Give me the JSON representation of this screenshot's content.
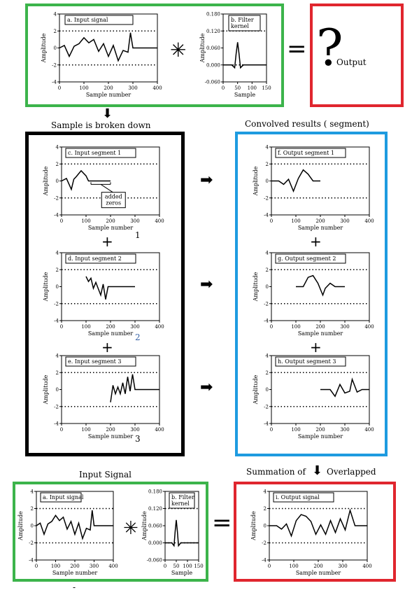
{
  "ops": {
    "star": "✳",
    "equals": "=",
    "plus": "+",
    "question": "?",
    "output_label": "Output"
  },
  "labels": {
    "broken": "Sample is broken down",
    "convolved": "Convolved results ( segment)",
    "input_signal": "Input Signal",
    "summation": "Summation of",
    "overlapped": "Overlapped",
    "num1": "1",
    "num2": "2",
    "num3": "3",
    "bottom_dash": "-"
  },
  "colors": {
    "green": "#3cb44b",
    "red": "#e0262e",
    "blue": "#1e9be0",
    "black": "#000000"
  },
  "plots": {
    "a_top": {
      "title_lines": [
        "a.  Input signal"
      ],
      "ylabel": "Amplitude",
      "xlabel": "Sample number",
      "xticks": [
        "0",
        "100",
        "200",
        "300",
        "400"
      ],
      "yticks": [
        "4",
        "2",
        "0",
        "-2",
        "-4"
      ],
      "xlim": [
        0,
        400
      ],
      "ylim": [
        -4,
        4
      ]
    },
    "b_top": {
      "title_lines": [
        "b.  Filter",
        "kernel"
      ],
      "ylabel": "Amplitude",
      "xlabel": "Sample",
      "xticks": [
        "0",
        "50",
        "100",
        "150"
      ],
      "yticks": [
        "0.180",
        "0.120",
        "0.060",
        "0.000",
        "-0.060"
      ],
      "xlim": [
        0,
        150
      ],
      "ylim": [
        -0.06,
        0.18
      ]
    },
    "c": {
      "title_lines": [
        "c.  Input segment 1"
      ],
      "ylabel": "Amplitude",
      "xlabel": "Sample number",
      "xticks": [
        "0",
        "100",
        "200",
        "300",
        "400"
      ],
      "yticks": [
        "4",
        "2",
        "0",
        "-2",
        "-4"
      ],
      "xlim": [
        0,
        400
      ],
      "ylim": [
        -4,
        4
      ],
      "annotation_lines": [
        "added",
        "zeros"
      ]
    },
    "d": {
      "title_lines": [
        "d.  Input segment 2"
      ],
      "ylabel": "Amplitude",
      "xlabel": "Sample number",
      "xticks": [
        "0",
        "100",
        "200",
        "300",
        "400"
      ],
      "yticks": [
        "4",
        "2",
        "0",
        "-2",
        "-4"
      ],
      "xlim": [
        0,
        400
      ],
      "ylim": [
        -4,
        4
      ]
    },
    "e": {
      "title_lines": [
        "e.  Input segment 3"
      ],
      "ylabel": "Amplitude",
      "xlabel": "Sample number",
      "xticks": [
        "0",
        "100",
        "200",
        "300",
        "400"
      ],
      "yticks": [
        "4",
        "2",
        "0",
        "-2",
        "-4"
      ],
      "xlim": [
        0,
        400
      ],
      "ylim": [
        -4,
        4
      ]
    },
    "f": {
      "title_lines": [
        "f.  Output segment 1"
      ],
      "ylabel": "Amplitude",
      "xlabel": "Sample number",
      "xticks": [
        "0",
        "100",
        "200",
        "300",
        "400"
      ],
      "yticks": [
        "4",
        "2",
        "0",
        "-2",
        "-4"
      ],
      "xlim": [
        0,
        400
      ],
      "ylim": [
        -4,
        4
      ]
    },
    "g": {
      "title_lines": [
        "g.  Output segment 2"
      ],
      "ylabel": "Amplitude",
      "xlabel": "Sample number",
      "xticks": [
        "0",
        "100",
        "200",
        "300",
        "400"
      ],
      "yticks": [
        "4",
        "2",
        "0",
        "-2",
        "-4"
      ],
      "xlim": [
        0,
        400
      ],
      "ylim": [
        -4,
        4
      ]
    },
    "h": {
      "title_lines": [
        "h.  Output segment 3"
      ],
      "ylabel": "Amplitude",
      "xlabel": "Sample number",
      "xticks": [
        "0",
        "100",
        "200",
        "300",
        "400"
      ],
      "yticks": [
        "4",
        "2",
        "0",
        "-2",
        "-4"
      ],
      "xlim": [
        0,
        400
      ],
      "ylim": [
        -4,
        4
      ]
    },
    "a_bot": {
      "title_lines": [
        "a.  Input signal"
      ],
      "ylabel": "Amplitude",
      "xlabel": "Sample number",
      "xticks": [
        "0",
        "100",
        "200",
        "300",
        "400"
      ],
      "yticks": [
        "4",
        "2",
        "0",
        "-2",
        "-4"
      ],
      "xlim": [
        0,
        400
      ],
      "ylim": [
        -4,
        4
      ]
    },
    "b_bot": {
      "title_lines": [
        "b.  Filter",
        "kernel"
      ],
      "ylabel": "Amplitude",
      "xlabel": "Sample",
      "xticks": [
        "0",
        "50",
        "100",
        "150"
      ],
      "yticks": [
        "0.180",
        "0.120",
        "0.060",
        "0.000",
        "-0.060"
      ],
      "xlim": [
        0,
        150
      ],
      "ylim": [
        -0.06,
        0.18
      ]
    },
    "i": {
      "title_lines": [
        "i.  Output signal"
      ],
      "ylabel": "Amplitude",
      "xlabel": "Sample number",
      "xticks": [
        "0",
        "100",
        "200",
        "300",
        "400"
      ],
      "yticks": [
        "4",
        "2",
        "0",
        "-2",
        "-4"
      ],
      "xlim": [
        0,
        400
      ],
      "ylim": [
        -4,
        4
      ]
    }
  },
  "chart_data": [
    {
      "id": "a_top",
      "type": "line",
      "x": [
        0,
        20,
        40,
        60,
        80,
        100,
        120,
        140,
        160,
        180,
        200,
        220,
        240,
        260,
        280,
        290,
        300,
        350,
        400
      ],
      "values": [
        0,
        0.3,
        -1,
        0.2,
        0.5,
        1.2,
        0.6,
        1,
        -0.4,
        0.5,
        -1,
        0.3,
        -1.5,
        -0.3,
        -0.5,
        1.8,
        0,
        0,
        0
      ],
      "xlim": [
        0,
        400
      ],
      "ylim": [
        -4,
        4
      ]
    },
    {
      "id": "b_top",
      "type": "line",
      "x": [
        0,
        30,
        40,
        45,
        50,
        55,
        60,
        70,
        100,
        150
      ],
      "values": [
        0,
        0,
        -0.01,
        0.04,
        0.08,
        0.04,
        -0.01,
        0,
        0,
        0
      ],
      "xlim": [
        0,
        150
      ],
      "ylim": [
        -0.06,
        0.18
      ]
    },
    {
      "id": "c",
      "type": "line",
      "x": [
        0,
        20,
        40,
        50,
        60,
        80,
        100,
        110,
        120,
        150,
        200
      ],
      "values": [
        0,
        0.3,
        -1,
        0.2,
        0.5,
        1.2,
        0.6,
        0,
        0,
        0,
        0
      ],
      "xlim": [
        0,
        400
      ],
      "ylim": [
        -4,
        4
      ]
    },
    {
      "id": "d",
      "type": "line",
      "x": [
        100,
        110,
        120,
        130,
        140,
        160,
        170,
        180,
        190,
        200,
        250,
        300
      ],
      "values": [
        1.2,
        0.6,
        1,
        -0.2,
        0.5,
        -1,
        0.3,
        -1.5,
        0,
        0,
        0,
        0
      ],
      "xlim": [
        0,
        400
      ],
      "ylim": [
        -4,
        4
      ]
    },
    {
      "id": "e",
      "type": "line",
      "x": [
        200,
        210,
        220,
        230,
        240,
        250,
        260,
        270,
        280,
        290,
        300,
        350,
        400
      ],
      "values": [
        -1.5,
        0.5,
        -0.5,
        0.3,
        -0.5,
        0.8,
        -0.5,
        1.5,
        -0.2,
        1.8,
        0,
        0,
        0
      ],
      "xlim": [
        0,
        400
      ],
      "ylim": [
        -4,
        4
      ]
    },
    {
      "id": "f",
      "type": "line",
      "x": [
        0,
        30,
        50,
        70,
        90,
        110,
        130,
        150,
        170,
        190,
        200
      ],
      "values": [
        0,
        0,
        -0.4,
        0.2,
        -1.2,
        0.3,
        1.3,
        0.8,
        0,
        0,
        0
      ],
      "xlim": [
        0,
        400
      ],
      "ylim": [
        -4,
        4
      ]
    },
    {
      "id": "g",
      "type": "line",
      "x": [
        100,
        130,
        150,
        170,
        190,
        210,
        220,
        240,
        260,
        280,
        300
      ],
      "values": [
        0,
        0,
        1.1,
        1.3,
        0.4,
        -1,
        -0.2,
        0.4,
        0,
        0,
        0
      ],
      "xlim": [
        0,
        400
      ],
      "ylim": [
        -4,
        4
      ]
    },
    {
      "id": "h",
      "type": "line",
      "x": [
        200,
        240,
        260,
        280,
        300,
        320,
        330,
        350,
        370,
        380,
        400
      ],
      "values": [
        0,
        0,
        -0.8,
        0.6,
        -0.4,
        -0.2,
        1.2,
        -0.3,
        0,
        0,
        0
      ],
      "xlim": [
        0,
        400
      ],
      "ylim": [
        -4,
        4
      ]
    },
    {
      "id": "a_bot",
      "type": "line",
      "x": [
        0,
        20,
        40,
        60,
        80,
        100,
        120,
        140,
        160,
        180,
        200,
        220,
        240,
        260,
        280,
        290,
        300,
        350,
        400
      ],
      "values": [
        0,
        0.3,
        -1,
        0.2,
        0.5,
        1.2,
        0.6,
        1,
        -0.4,
        0.5,
        -1,
        0.3,
        -1.5,
        -0.3,
        -0.5,
        1.8,
        0,
        0,
        0
      ],
      "xlim": [
        0,
        400
      ],
      "ylim": [
        -4,
        4
      ]
    },
    {
      "id": "b_bot",
      "type": "line",
      "x": [
        0,
        30,
        40,
        45,
        50,
        55,
        60,
        70,
        100,
        150
      ],
      "values": [
        0,
        0,
        -0.01,
        0.04,
        0.08,
        0.04,
        -0.01,
        0,
        0,
        0
      ],
      "xlim": [
        0,
        150
      ],
      "ylim": [
        -0.06,
        0.18
      ]
    },
    {
      "id": "i",
      "type": "line",
      "x": [
        0,
        30,
        50,
        70,
        90,
        110,
        130,
        150,
        170,
        190,
        210,
        230,
        250,
        270,
        290,
        310,
        330,
        350,
        370,
        400
      ],
      "values": [
        0,
        0,
        -0.4,
        0.2,
        -1.2,
        0.6,
        1.3,
        1.1,
        0.5,
        -1,
        0.1,
        -1,
        0.6,
        -0.8,
        0.8,
        -0.5,
        1.8,
        0,
        0,
        0
      ],
      "xlim": [
        0,
        400
      ],
      "ylim": [
        -4,
        4
      ]
    }
  ]
}
